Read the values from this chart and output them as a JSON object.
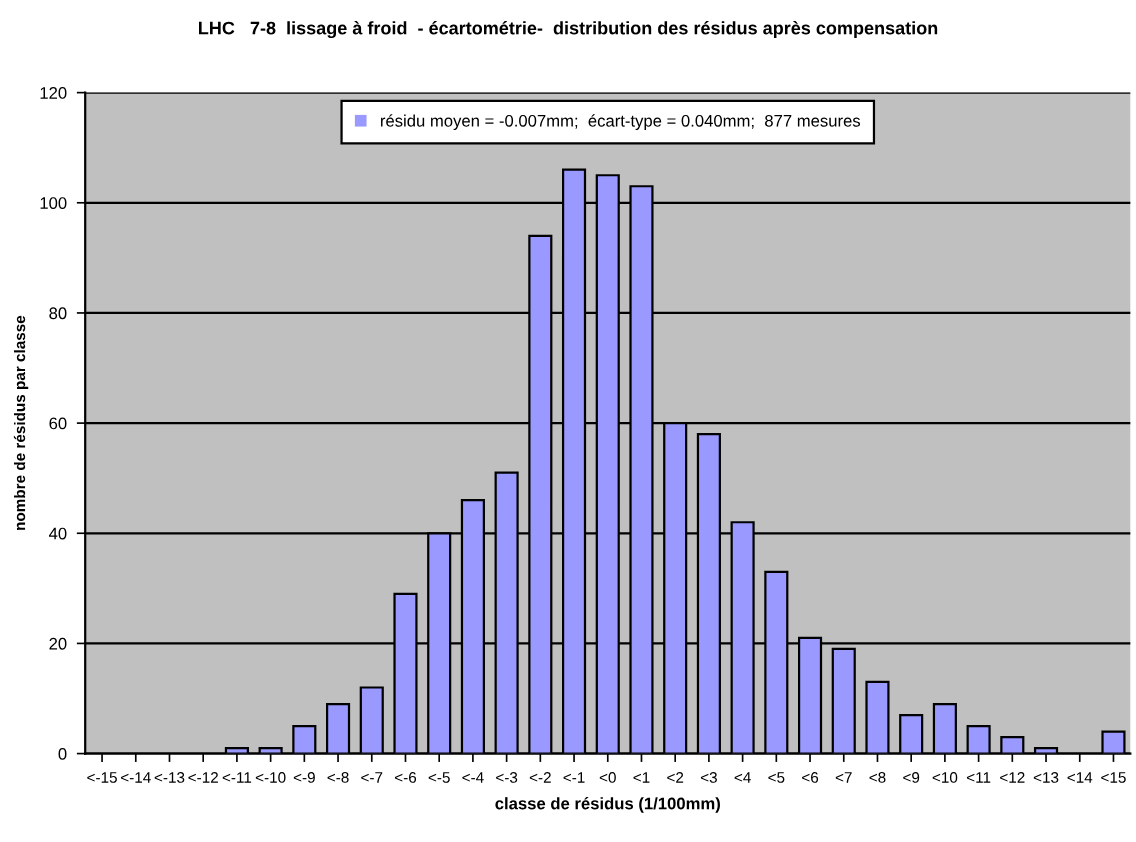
{
  "chart_data": {
    "type": "bar",
    "title": "LHC   7-8  lissage à froid  - écartométrie-  distribution des résidus après compensation",
    "xlabel": "classe de résidus (1/100mm)",
    "ylabel": "nombre de résidus par classe",
    "categories": [
      "<-15",
      "<-14",
      "<-13",
      "<-12",
      "<-11",
      "<-10",
      "<-9",
      "<-8",
      "<-7",
      "<-6",
      "<-5",
      "<-4",
      "<-3",
      "<-2",
      "<-1",
      "<0",
      "<1",
      "<2",
      "<3",
      "<4",
      "<5",
      "<6",
      "<7",
      "<8",
      "<9",
      "<10",
      "<11",
      "<12",
      "<13",
      "<14",
      "<15"
    ],
    "series": [
      {
        "name": "résidu moyen = -0.007mm;  écart-type = 0.040mm;  877 mesures",
        "color": "#9999ff",
        "values": [
          0,
          0,
          0,
          0,
          1,
          1,
          5,
          9,
          12,
          29,
          40,
          46,
          51,
          94,
          106,
          105,
          103,
          60,
          58,
          42,
          33,
          21,
          19,
          13,
          7,
          9,
          5,
          3,
          1,
          0,
          4
        ]
      }
    ],
    "ylim": [
      0,
      120
    ],
    "yticks": [
      0,
      20,
      40,
      60,
      80,
      100,
      120
    ],
    "grid": "y",
    "legend": "top"
  }
}
